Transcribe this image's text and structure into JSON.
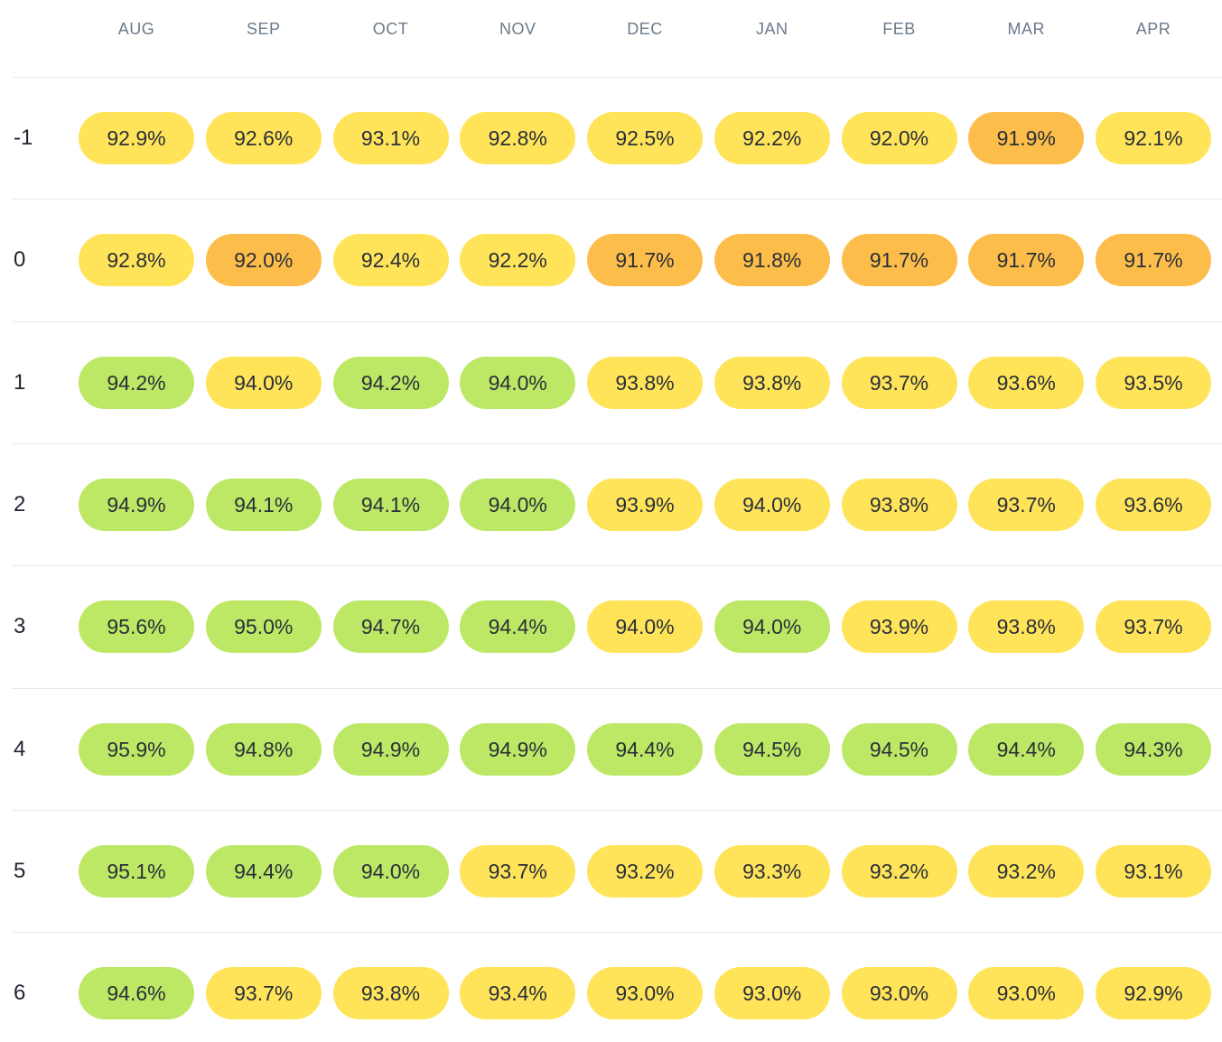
{
  "columns": [
    "AUG",
    "SEP",
    "OCT",
    "NOV",
    "DEC",
    "JAN",
    "FEB",
    "MAR",
    "APR"
  ],
  "colors": {
    "green": "#bde865",
    "yellow": "#ffe45a",
    "orange": "#fdbd4a",
    "divider": "#e6e8eb",
    "header_text": "#6b7a8a"
  },
  "rows": [
    {
      "label": "-1",
      "cells": [
        {
          "value": "92.9%",
          "level": "yellow"
        },
        {
          "value": "92.6%",
          "level": "yellow"
        },
        {
          "value": "93.1%",
          "level": "yellow"
        },
        {
          "value": "92.8%",
          "level": "yellow"
        },
        {
          "value": "92.5%",
          "level": "yellow"
        },
        {
          "value": "92.2%",
          "level": "yellow"
        },
        {
          "value": "92.0%",
          "level": "yellow"
        },
        {
          "value": "91.9%",
          "level": "orange"
        },
        {
          "value": "92.1%",
          "level": "yellow"
        }
      ]
    },
    {
      "label": "0",
      "cells": [
        {
          "value": "92.8%",
          "level": "yellow"
        },
        {
          "value": "92.0%",
          "level": "orange"
        },
        {
          "value": "92.4%",
          "level": "yellow"
        },
        {
          "value": "92.2%",
          "level": "yellow"
        },
        {
          "value": "91.7%",
          "level": "orange"
        },
        {
          "value": "91.8%",
          "level": "orange"
        },
        {
          "value": "91.7%",
          "level": "orange"
        },
        {
          "value": "91.7%",
          "level": "orange"
        },
        {
          "value": "91.7%",
          "level": "orange"
        }
      ]
    },
    {
      "label": "1",
      "cells": [
        {
          "value": "94.2%",
          "level": "green"
        },
        {
          "value": "94.0%",
          "level": "yellow"
        },
        {
          "value": "94.2%",
          "level": "green"
        },
        {
          "value": "94.0%",
          "level": "green"
        },
        {
          "value": "93.8%",
          "level": "yellow"
        },
        {
          "value": "93.8%",
          "level": "yellow"
        },
        {
          "value": "93.7%",
          "level": "yellow"
        },
        {
          "value": "93.6%",
          "level": "yellow"
        },
        {
          "value": "93.5%",
          "level": "yellow"
        }
      ]
    },
    {
      "label": "2",
      "cells": [
        {
          "value": "94.9%",
          "level": "green"
        },
        {
          "value": "94.1%",
          "level": "green"
        },
        {
          "value": "94.1%",
          "level": "green"
        },
        {
          "value": "94.0%",
          "level": "green"
        },
        {
          "value": "93.9%",
          "level": "yellow"
        },
        {
          "value": "94.0%",
          "level": "yellow"
        },
        {
          "value": "93.8%",
          "level": "yellow"
        },
        {
          "value": "93.7%",
          "level": "yellow"
        },
        {
          "value": "93.6%",
          "level": "yellow"
        }
      ]
    },
    {
      "label": "3",
      "cells": [
        {
          "value": "95.6%",
          "level": "green"
        },
        {
          "value": "95.0%",
          "level": "green"
        },
        {
          "value": "94.7%",
          "level": "green"
        },
        {
          "value": "94.4%",
          "level": "green"
        },
        {
          "value": "94.0%",
          "level": "yellow"
        },
        {
          "value": "94.0%",
          "level": "green"
        },
        {
          "value": "93.9%",
          "level": "yellow"
        },
        {
          "value": "93.8%",
          "level": "yellow"
        },
        {
          "value": "93.7%",
          "level": "yellow"
        }
      ]
    },
    {
      "label": "4",
      "cells": [
        {
          "value": "95.9%",
          "level": "green"
        },
        {
          "value": "94.8%",
          "level": "green"
        },
        {
          "value": "94.9%",
          "level": "green"
        },
        {
          "value": "94.9%",
          "level": "green"
        },
        {
          "value": "94.4%",
          "level": "green"
        },
        {
          "value": "94.5%",
          "level": "green"
        },
        {
          "value": "94.5%",
          "level": "green"
        },
        {
          "value": "94.4%",
          "level": "green"
        },
        {
          "value": "94.3%",
          "level": "green"
        }
      ]
    },
    {
      "label": "5",
      "cells": [
        {
          "value": "95.1%",
          "level": "green"
        },
        {
          "value": "94.4%",
          "level": "green"
        },
        {
          "value": "94.0%",
          "level": "green"
        },
        {
          "value": "93.7%",
          "level": "yellow"
        },
        {
          "value": "93.2%",
          "level": "yellow"
        },
        {
          "value": "93.3%",
          "level": "yellow"
        },
        {
          "value": "93.2%",
          "level": "yellow"
        },
        {
          "value": "93.2%",
          "level": "yellow"
        },
        {
          "value": "93.1%",
          "level": "yellow"
        }
      ]
    },
    {
      "label": "6",
      "cells": [
        {
          "value": "94.6%",
          "level": "green"
        },
        {
          "value": "93.7%",
          "level": "yellow"
        },
        {
          "value": "93.8%",
          "level": "yellow"
        },
        {
          "value": "93.4%",
          "level": "yellow"
        },
        {
          "value": "93.0%",
          "level": "yellow"
        },
        {
          "value": "93.0%",
          "level": "yellow"
        },
        {
          "value": "93.0%",
          "level": "yellow"
        },
        {
          "value": "93.0%",
          "level": "yellow"
        },
        {
          "value": "92.9%",
          "level": "yellow"
        }
      ]
    }
  ]
}
